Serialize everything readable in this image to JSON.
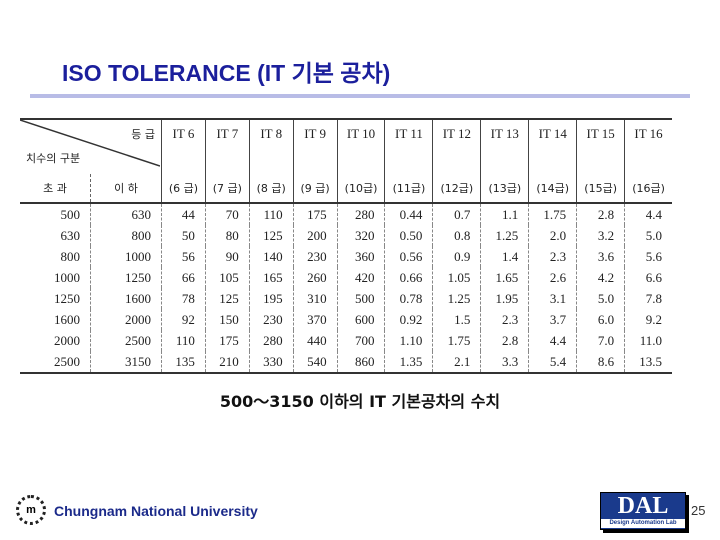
{
  "title": "ISO TOLERANCE (IT 기본 공차)",
  "table": {
    "corner_grade": "등 급",
    "corner_dimension": "치수의 구분",
    "sub_over": "초 과",
    "sub_upto": "이 하",
    "grades": [
      "IT 6",
      "IT 7",
      "IT 8",
      "IT 9",
      "IT 10",
      "IT 11",
      "IT 12",
      "IT 13",
      "IT 14",
      "IT 15",
      "IT 16"
    ],
    "grade_labels": [
      "(6 급)",
      "(7 급)",
      "(8 급)",
      "(9 급)",
      "(10급)",
      "(11급)",
      "(12급)",
      "(13급)",
      "(14급)",
      "(15급)",
      "(16급)"
    ],
    "rows": [
      [
        "500",
        "630",
        "44",
        "70",
        "110",
        "175",
        "280",
        "0.44",
        "0.7",
        "1.1",
        "1.75",
        "2.8",
        "4.4"
      ],
      [
        "630",
        "800",
        "50",
        "80",
        "125",
        "200",
        "320",
        "0.50",
        "0.8",
        "1.25",
        "2.0",
        "3.2",
        "5.0"
      ],
      [
        "800",
        "1000",
        "56",
        "90",
        "140",
        "230",
        "360",
        "0.56",
        "0.9",
        "1.4",
        "2.3",
        "3.6",
        "5.6"
      ],
      [
        "1000",
        "1250",
        "66",
        "105",
        "165",
        "260",
        "420",
        "0.66",
        "1.05",
        "1.65",
        "2.6",
        "4.2",
        "6.6"
      ],
      [
        "1250",
        "1600",
        "78",
        "125",
        "195",
        "310",
        "500",
        "0.78",
        "1.25",
        "1.95",
        "3.1",
        "5.0",
        "7.8"
      ],
      [
        "1600",
        "2000",
        "92",
        "150",
        "230",
        "370",
        "600",
        "0.92",
        "1.5",
        "2.3",
        "3.7",
        "6.0",
        "9.2"
      ],
      [
        "2000",
        "2500",
        "110",
        "175",
        "280",
        "440",
        "700",
        "1.10",
        "1.75",
        "2.8",
        "4.4",
        "7.0",
        "11.0"
      ],
      [
        "2500",
        "3150",
        "135",
        "210",
        "330",
        "540",
        "860",
        "1.35",
        "2.1",
        "3.3",
        "5.4",
        "8.6",
        "13.5"
      ]
    ]
  },
  "caption": "500～3150 이하의 IT 기본공차의 수치",
  "footer": {
    "university": "Chungnam National University",
    "lab_logo": "DAL",
    "lab_name": "Design Automation Lab",
    "page_number": "25"
  },
  "colors": {
    "title": "#1b1f9c",
    "rule": "#b8bce6",
    "university": "#1b2a8a",
    "lab_logo_bg": "#1a3a8c"
  }
}
